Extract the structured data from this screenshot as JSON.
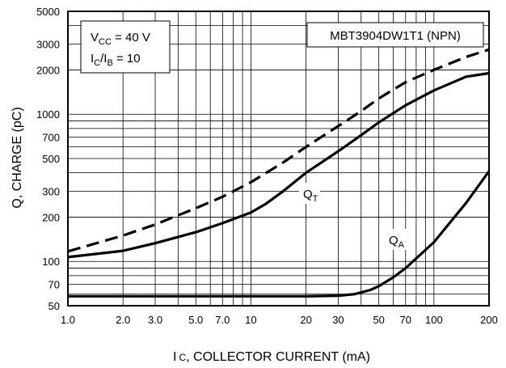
{
  "chart_data": {
    "type": "line",
    "title": "",
    "xlabel_main": "I",
    "xlabel_sub": "C",
    "xlabel_rest": ", COLLECTOR CURRENT (mA)",
    "ylabel": "Q, CHARGE (pC)",
    "x_scale": "log",
    "y_scale": "log",
    "xlim": [
      1.0,
      200
    ],
    "ylim": [
      50,
      5000
    ],
    "x_ticks": [
      {
        "value": 1.0,
        "label": "1.0"
      },
      {
        "value": 2.0,
        "label": "2.0"
      },
      {
        "value": 3.0,
        "label": "3.0"
      },
      {
        "value": 5.0,
        "label": "5.0"
      },
      {
        "value": 7.0,
        "label": "7.0"
      },
      {
        "value": 10,
        "label": "10"
      },
      {
        "value": 20,
        "label": "20"
      },
      {
        "value": 30,
        "label": "30"
      },
      {
        "value": 50,
        "label": "50"
      },
      {
        "value": 70,
        "label": "70"
      },
      {
        "value": 100,
        "label": "100"
      },
      {
        "value": 200,
        "label": "200"
      }
    ],
    "y_ticks": [
      {
        "value": 50,
        "label": "50"
      },
      {
        "value": 70,
        "label": "70"
      },
      {
        "value": 100,
        "label": "100"
      },
      {
        "value": 200,
        "label": "200"
      },
      {
        "value": 300,
        "label": "300"
      },
      {
        "value": 500,
        "label": "500"
      },
      {
        "value": 700,
        "label": "700"
      },
      {
        "value": 1000,
        "label": "1000"
      },
      {
        "value": 2000,
        "label": "2000"
      },
      {
        "value": 3000,
        "label": "3000"
      },
      {
        "value": 5000,
        "label": "5000"
      }
    ],
    "x_minor_grid": [
      1,
      2,
      3,
      4,
      5,
      6,
      7,
      8,
      9,
      10,
      20,
      30,
      40,
      50,
      60,
      70,
      80,
      90,
      100,
      200
    ],
    "y_minor_grid": [
      50,
      60,
      70,
      80,
      90,
      100,
      200,
      300,
      400,
      500,
      600,
      700,
      800,
      900,
      1000,
      2000,
      3000,
      4000,
      5000
    ],
    "grid": true,
    "series": [
      {
        "name": "QT_dashed",
        "style": "dashed",
        "x": [
          1.0,
          2.0,
          3.0,
          5.0,
          7.0,
          10,
          15,
          20,
          30,
          40,
          50,
          70,
          100,
          150,
          200
        ],
        "y": [
          117,
          150,
          178,
          230,
          275,
          345,
          470,
          600,
          830,
          1050,
          1280,
          1650,
          2000,
          2450,
          2750
        ]
      },
      {
        "name": "QT",
        "label_main": "Q",
        "label_sub": "T",
        "style": "solid",
        "x": [
          1.0,
          2.0,
          3.0,
          5.0,
          7.0,
          10,
          12,
          15,
          20,
          30,
          40,
          50,
          70,
          100,
          150,
          200
        ],
        "y": [
          107,
          118,
          133,
          158,
          182,
          215,
          245,
          300,
          400,
          560,
          720,
          880,
          1150,
          1450,
          1800,
          1900
        ]
      },
      {
        "name": "QA",
        "label_main": "Q",
        "label_sub": "A",
        "style": "solid",
        "x": [
          1.0,
          10,
          20,
          30,
          37,
          40,
          45,
          50,
          60,
          70,
          100,
          150,
          200
        ],
        "y": [
          58,
          58,
          58,
          58.5,
          60,
          61.5,
          64,
          68,
          78,
          90,
          135,
          250,
          410
        ]
      }
    ],
    "annotations": {
      "vcc_main": "V",
      "vcc_sub": "CC",
      "vcc_rest": " = 40 V",
      "ic_main": "I",
      "ic_sub": "C",
      "ic_mid": "/I",
      "ib_sub": "B",
      "ratio_rest": " = 10",
      "part": "MBT3904DW1T1 (NPN)"
    },
    "colors": {
      "line": "#000000",
      "grid": "#000000",
      "background": "#ffffff"
    }
  }
}
